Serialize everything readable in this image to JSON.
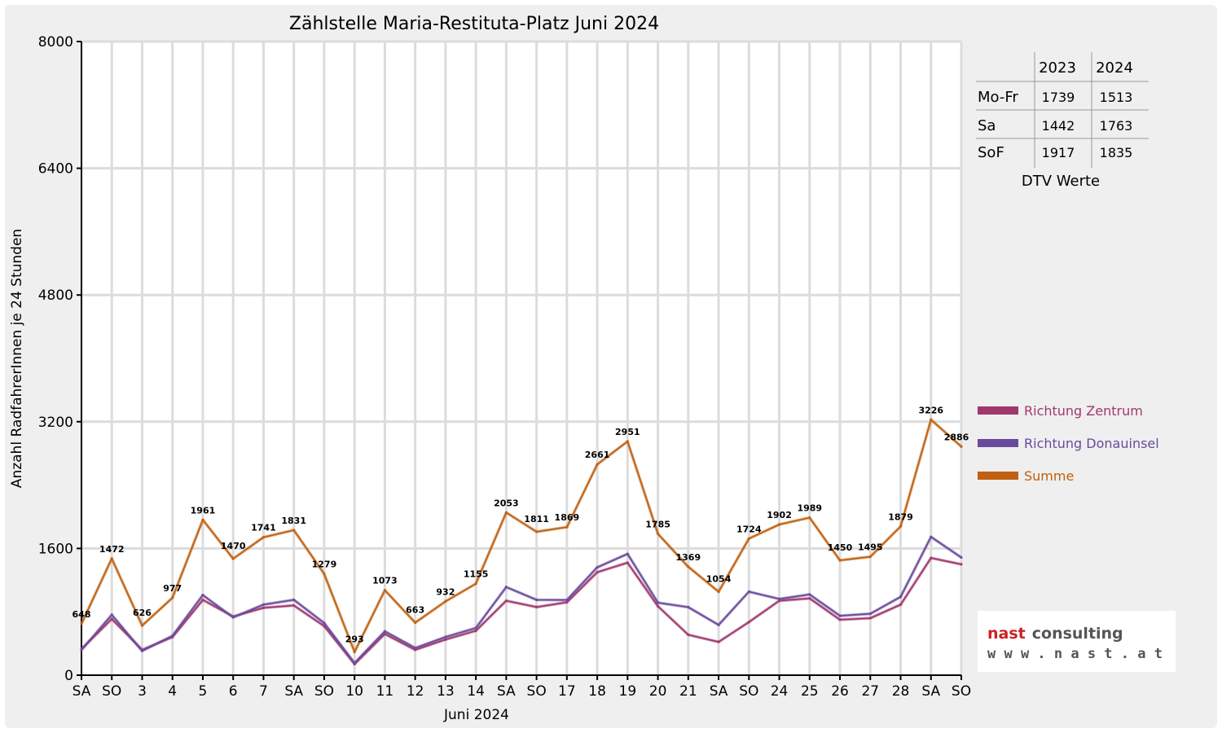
{
  "chart_data": {
    "type": "line",
    "title": "Zählstelle Maria-Restituta-Platz Juni 2024",
    "ylabel": "Anzahl RadfahrerInnen je 24 Stunden",
    "xlabel": "Juni 2024",
    "ylim": [
      0,
      8000
    ],
    "yticks": [
      "0",
      "1600",
      "3200",
      "4800",
      "6400",
      "8000"
    ],
    "ytick_values": [
      0,
      1600,
      3200,
      4800,
      6400,
      8000
    ],
    "categories": [
      "SA",
      "SO",
      "3",
      "4",
      "5",
      "6",
      "7",
      "SA",
      "SO",
      "10",
      "11",
      "12",
      "13",
      "14",
      "SA",
      "SO",
      "17",
      "18",
      "19",
      "20",
      "21",
      "SA",
      "SO",
      "24",
      "25",
      "26",
      "27",
      "28",
      "SA",
      "SO"
    ],
    "weekend_categories_color": "#ff0000",
    "weekend_indices": [
      1,
      8,
      15,
      22,
      29
    ],
    "grid": true,
    "legend_position": "right",
    "series": [
      {
        "name": "Richtung Zentrum",
        "color": "#a0386e",
        "values": [
          330,
          710,
          320,
          480,
          950,
          740,
          850,
          880,
          620,
          140,
          520,
          320,
          450,
          560,
          940,
          860,
          920,
          1300,
          1420,
          870,
          510,
          420,
          670,
          940,
          970,
          700,
          720,
          890,
          1480,
          1400
        ]
      },
      {
        "name": "Richtung Donauinsel",
        "color": "#6a4a9c",
        "values": [
          318,
          762,
          306,
          497,
          1011,
          730,
          891,
          951,
          659,
          153,
          553,
          343,
          482,
          595,
          1113,
          951,
          949,
          1361,
          1531,
          915,
          859,
          634,
          1054,
          962,
          1019,
          750,
          775,
          989,
          1746,
          1486
        ]
      },
      {
        "name": "Summe",
        "color": "#c06010",
        "values": [
          648,
          1472,
          626,
          977,
          1961,
          1470,
          1741,
          1831,
          1279,
          293,
          1073,
          663,
          932,
          1155,
          2053,
          1811,
          1869,
          2661,
          2951,
          1785,
          1369,
          1054,
          1724,
          1902,
          1989,
          1450,
          1495,
          1879,
          3226,
          2886
        ]
      }
    ],
    "data_labels": [
      "648",
      "1472",
      "626",
      "977",
      "1961",
      "1470",
      "1741",
      "1831",
      "1279",
      "293",
      "1073",
      "663",
      "932",
      "1155",
      "2053",
      "1811",
      "1869",
      "2661",
      "2951",
      "1785",
      "1369",
      "1054",
      "1724",
      "1902",
      "1989",
      "1450",
      "1495",
      "1879",
      "3226",
      "2886"
    ]
  },
  "dtv_table": {
    "headers": [
      "2023",
      "2024"
    ],
    "rows": [
      {
        "label": "Mo-Fr",
        "v2023": "1739",
        "v2024": "1513"
      },
      {
        "label": "Sa",
        "v2023": "1442",
        "v2024": "1763"
      },
      {
        "label": "SoF",
        "v2023": "1917",
        "v2024": "1835"
      }
    ],
    "caption": "DTV Werte"
  },
  "logo": {
    "brand_word1": "nast",
    "brand_word2": "consulting",
    "url": "w w w . n a s t . a t",
    "color_word1": "#cc2222",
    "color_word2": "#555555"
  }
}
